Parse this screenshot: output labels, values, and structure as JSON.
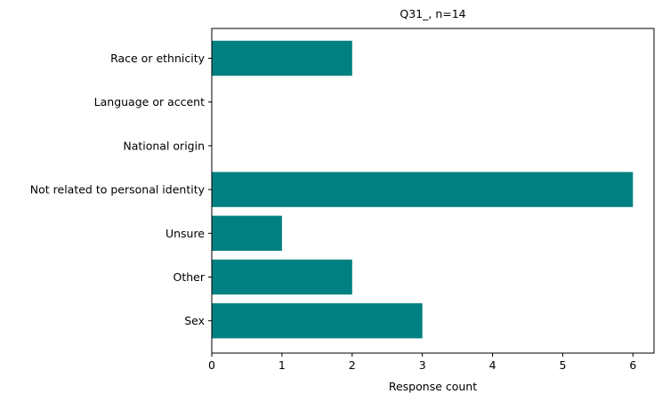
{
  "chart_data": {
    "type": "bar",
    "orientation": "horizontal",
    "title": "Q31_, n=14",
    "xlabel": "Response count",
    "ylabel": "",
    "categories": [
      "Race or ethnicity",
      "Language or accent",
      "National origin",
      "Not related to personal identity",
      "Unsure",
      "Other",
      "Sex"
    ],
    "values": [
      2,
      0,
      0,
      6,
      1,
      2,
      3
    ],
    "xlim": [
      0,
      6.3
    ],
    "xticks": [
      "0",
      "1",
      "2",
      "3",
      "4",
      "5",
      "6"
    ],
    "grid": false,
    "bar_color": "#008080"
  }
}
